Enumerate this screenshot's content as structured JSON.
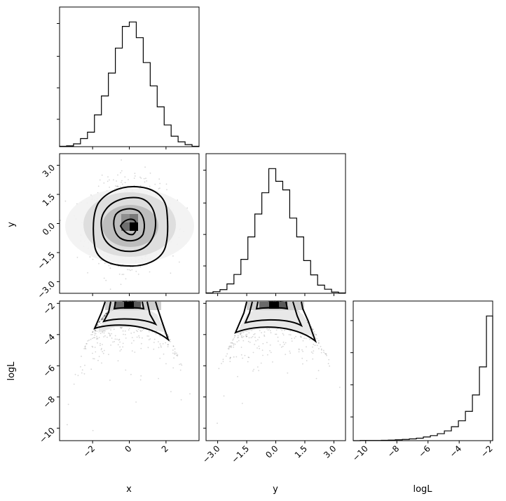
{
  "chart_data": {
    "type": "corner",
    "params": [
      "x",
      "y",
      "logL"
    ],
    "x_ticks": [
      "−2",
      "0",
      "2"
    ],
    "y_ticks": [
      "−3.0",
      "−1.5",
      "0.0",
      "1.5",
      "3.0"
    ],
    "logL_ticks": [
      "−10",
      "−8",
      "−6",
      "−4",
      "−2"
    ],
    "ranges": {
      "x": [
        -3.8,
        3.8
      ],
      "y": [
        -3.6,
        3.6
      ],
      "logL": [
        -10.8,
        -1.85
      ]
    },
    "histograms": {
      "x": {
        "edges": [
          -3.8,
          -3.42,
          -3.04,
          -2.66,
          -2.28,
          -1.9,
          -1.52,
          -1.14,
          -0.76,
          -0.38,
          0.0,
          0.38,
          0.76,
          1.14,
          1.52,
          1.9,
          2.28,
          2.66,
          3.04,
          3.42,
          3.8
        ],
        "counts": [
          1,
          2,
          7,
          20,
          36,
          79,
          126,
          183,
          245,
          299,
          310,
          271,
          209,
          151,
          99,
          54,
          26,
          12,
          5,
          1
        ]
      },
      "y": {
        "edges": [
          -3.6,
          -3.24,
          -2.88,
          -2.52,
          -2.16,
          -1.8,
          -1.44,
          -1.08,
          -0.72,
          -0.36,
          0.0,
          0.36,
          0.72,
          1.08,
          1.44,
          1.8,
          2.16,
          2.52,
          2.88,
          3.24,
          3.6
        ],
        "counts": [
          1,
          4,
          9,
          23,
          46,
          83,
          138,
          194,
          246,
          305,
          274,
          253,
          184,
          138,
          80,
          45,
          20,
          10,
          3,
          1
        ]
      },
      "logL": {
        "edges": [
          -10.8,
          -10.35,
          -9.9,
          -9.45,
          -9.0,
          -8.55,
          -8.1,
          -7.65,
          -7.2,
          -6.75,
          -6.3,
          -5.85,
          -5.4,
          -4.95,
          -4.5,
          -4.05,
          -3.6,
          -3.15,
          -2.7,
          -2.25,
          -1.85
        ],
        "counts": [
          0,
          1,
          1,
          1,
          2,
          3,
          5,
          7,
          10,
          14,
          21,
          29,
          40,
          56,
          80,
          114,
          168,
          262,
          423,
          715
        ]
      }
    },
    "contour_levels": [
      "0.5-sigma",
      "1-sigma",
      "1.5-sigma",
      "2-sigma"
    ],
    "sample_color": "#000000",
    "contour_color": "#000000"
  }
}
